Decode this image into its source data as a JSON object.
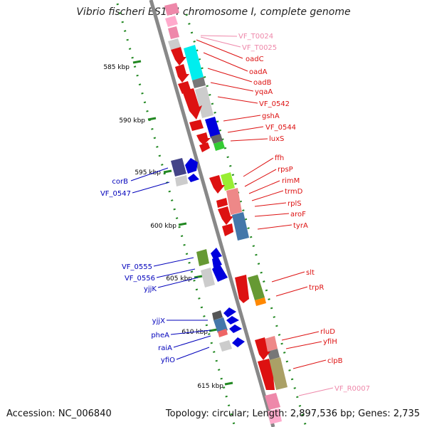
{
  "title": "Vibrio fischeri ES114 chromosome I, complete genome",
  "footer": {
    "accession": "Accession: NC_006840",
    "summary": "Topology: circular; Length: 2,897,536 bp; Genes: 2,735"
  },
  "colors": {
    "forward": "#dd1111",
    "reverse": "#0000bb",
    "pink": "#ee88aa",
    "ruler": "#228822",
    "backbone": "#888888"
  },
  "ticks": [
    "585 kbp",
    "590 kbp",
    "595 kbp",
    "600 kbp",
    "605 kbp",
    "610 kbp",
    "615 kbp"
  ],
  "right_labels": [
    {
      "text": "VF_T0024",
      "color": "#ee88aa"
    },
    {
      "text": "VF_T0025",
      "color": "#ee88aa"
    },
    {
      "text": "oadC",
      "color": "#dd1111"
    },
    {
      "text": "oadA",
      "color": "#dd1111"
    },
    {
      "text": "oadB",
      "color": "#dd1111"
    },
    {
      "text": "yqaA",
      "color": "#dd1111"
    },
    {
      "text": "VF_0542",
      "color": "#dd1111"
    },
    {
      "text": "gshA",
      "color": "#dd1111"
    },
    {
      "text": "VF_0544",
      "color": "#dd1111"
    },
    {
      "text": "luxS",
      "color": "#dd1111"
    },
    {
      "text": "ffh",
      "color": "#dd1111"
    },
    {
      "text": "rpsP",
      "color": "#dd1111"
    },
    {
      "text": "rimM",
      "color": "#dd1111"
    },
    {
      "text": "trmD",
      "color": "#dd1111"
    },
    {
      "text": "rplS",
      "color": "#dd1111"
    },
    {
      "text": "aroF",
      "color": "#dd1111"
    },
    {
      "text": "tyrA",
      "color": "#dd1111"
    },
    {
      "text": "slt",
      "color": "#dd1111"
    },
    {
      "text": "trpR",
      "color": "#dd1111"
    },
    {
      "text": "rluD",
      "color": "#dd1111"
    },
    {
      "text": "yfiH",
      "color": "#dd1111"
    },
    {
      "text": "clpB",
      "color": "#dd1111"
    },
    {
      "text": "VF_R0007",
      "color": "#ee88aa"
    }
  ],
  "left_labels": [
    {
      "text": "corB"
    },
    {
      "text": "VF_0547"
    },
    {
      "text": "VF_0555"
    },
    {
      "text": "VF_0556"
    },
    {
      "text": "yjjK"
    },
    {
      "text": "yjjX"
    },
    {
      "text": "pheA"
    },
    {
      "text": "raiA"
    },
    {
      "text": "yfiO"
    }
  ]
}
